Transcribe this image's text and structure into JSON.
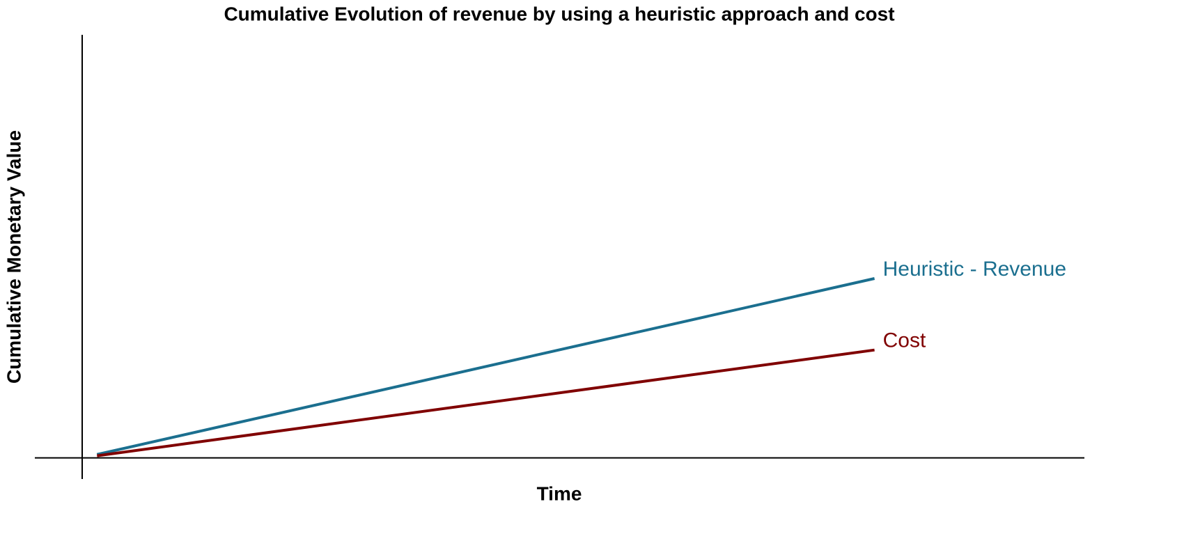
{
  "chart_data": {
    "type": "line",
    "title": "Cumulative Evolution of revenue by using a heuristic approach and cost",
    "x_label": "Time",
    "y_label": "Cumulative Monetary Value",
    "x": [
      0,
      10
    ],
    "xlim": [
      -0.8,
      12.7
    ],
    "ylim": [
      -5,
      100
    ],
    "series": [
      {
        "name": "Heuristic - Revenue",
        "color": "#1b6f8f",
        "values": [
          0.8,
          42.4
        ]
      },
      {
        "name": "Cost",
        "color": "#800000",
        "values": [
          0.5,
          25.5
        ]
      }
    ]
  }
}
